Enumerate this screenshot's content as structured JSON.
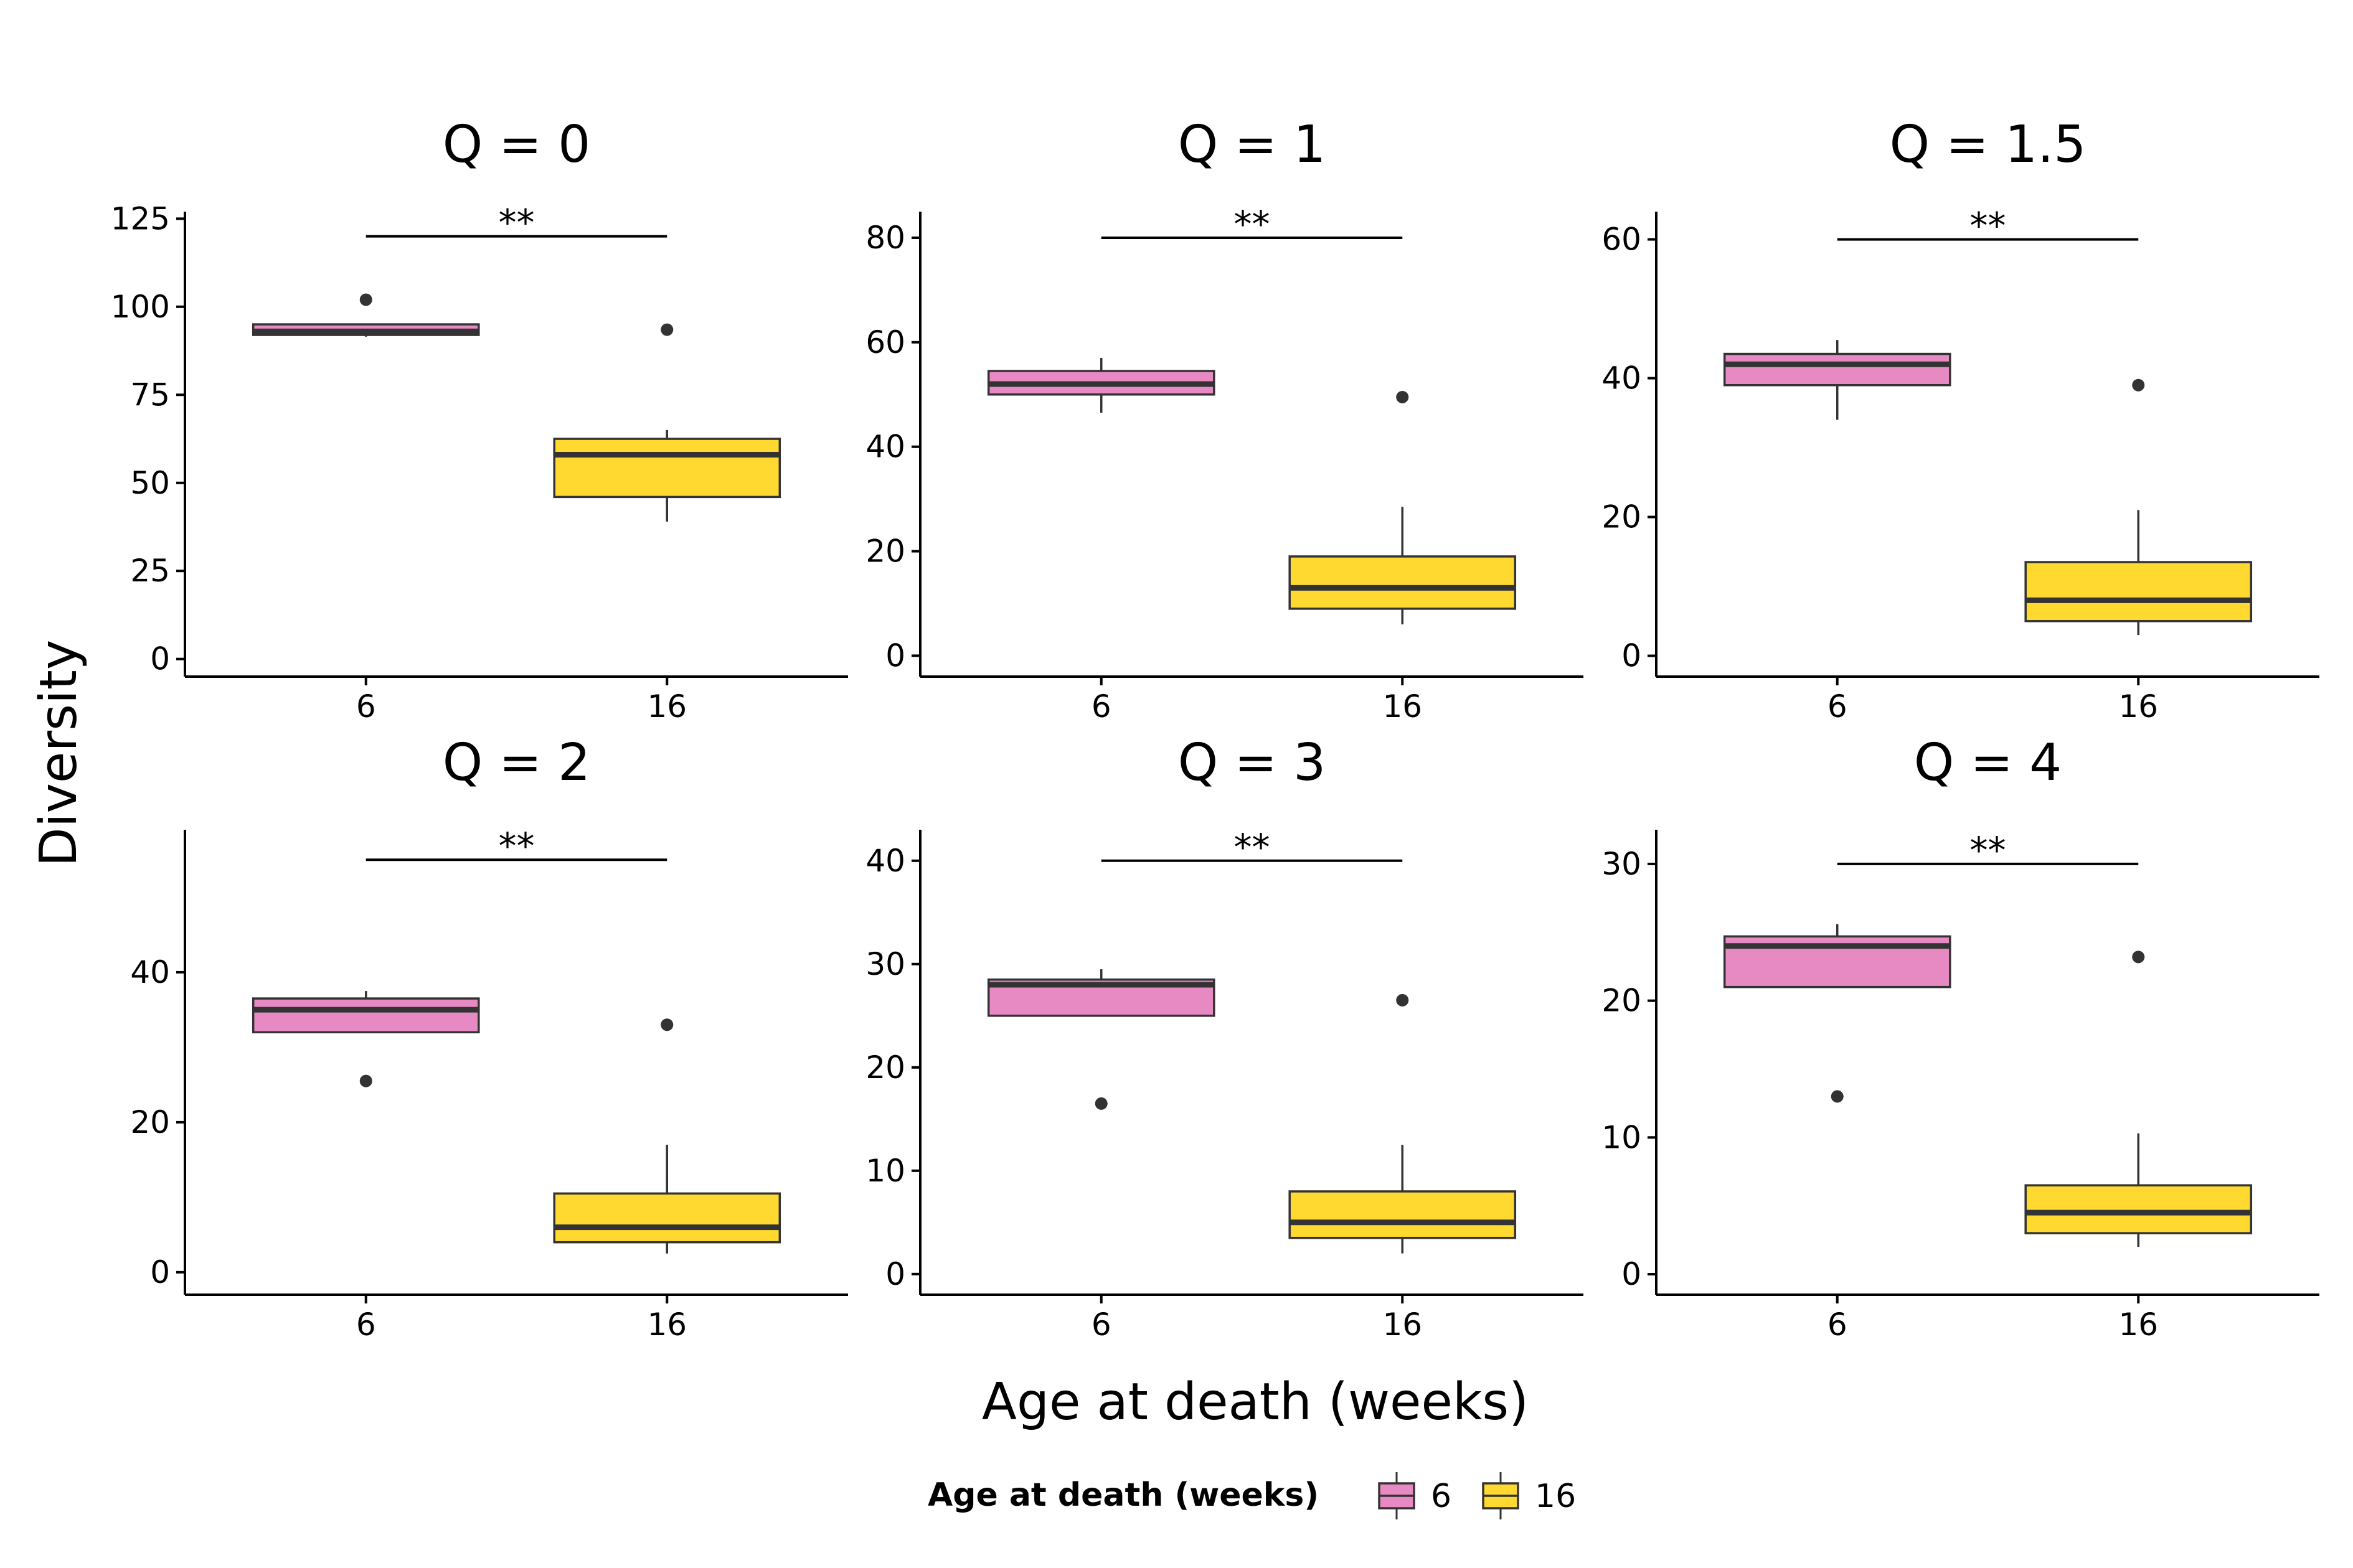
{
  "chart_data": {
    "type": "box",
    "ylabel": "Diversity",
    "xlabel": "Age at death (weeks)",
    "categories": [
      "6",
      "16"
    ],
    "colors": {
      "6": "#e78ac3",
      "16": "#ffd92f"
    },
    "legend": {
      "title": "Age at death (weeks)",
      "position": "bottom",
      "items": [
        {
          "label": "6",
          "color": "#e78ac3"
        },
        {
          "label": "16",
          "color": "#ffd92f"
        }
      ]
    },
    "panels": [
      {
        "title": "Q = 0",
        "ylim": [
          -5,
          127
        ],
        "yticks": [
          0,
          25,
          50,
          75,
          100,
          125
        ],
        "significance": {
          "label": "**",
          "y": 120
        },
        "boxes": [
          {
            "group": "6",
            "whisker_low": 91.5,
            "q1": 92,
            "median": 93,
            "q3": 95,
            "whisker_high": 95,
            "outliers": [
              102
            ]
          },
          {
            "group": "16",
            "whisker_low": 39,
            "q1": 46,
            "median": 58,
            "q3": 62.5,
            "whisker_high": 65,
            "outliers": [
              93.5
            ]
          }
        ]
      },
      {
        "title": "Q = 1",
        "ylim": [
          -4,
          85
        ],
        "yticks": [
          0,
          20,
          40,
          60,
          80
        ],
        "significance": {
          "label": "**",
          "y": 80
        },
        "boxes": [
          {
            "group": "6",
            "whisker_low": 46.5,
            "q1": 50,
            "median": 52,
            "q3": 54.5,
            "whisker_high": 57,
            "outliers": []
          },
          {
            "group": "16",
            "whisker_low": 6,
            "q1": 9,
            "median": 13,
            "q3": 19,
            "whisker_high": 28.5,
            "outliers": [
              49.5
            ]
          }
        ]
      },
      {
        "title": "Q = 1.5",
        "ylim": [
          -3,
          64
        ],
        "yticks": [
          0,
          20,
          40,
          60
        ],
        "significance": {
          "label": "**",
          "y": 60
        },
        "boxes": [
          {
            "group": "6",
            "whisker_low": 34,
            "q1": 39,
            "median": 42,
            "q3": 43.5,
            "whisker_high": 45.5,
            "outliers": []
          },
          {
            "group": "16",
            "whisker_low": 3,
            "q1": 5,
            "median": 8,
            "q3": 13.5,
            "whisker_high": 21,
            "outliers": [
              39
            ]
          }
        ]
      },
      {
        "title": "Q = 2",
        "ylim": [
          -3,
          59
        ],
        "yticks": [
          0,
          20,
          40
        ],
        "significance": {
          "label": "**",
          "y": 55
        },
        "boxes": [
          {
            "group": "6",
            "whisker_low": 32,
            "q1": 32,
            "median": 35,
            "q3": 36.5,
            "whisker_high": 37.5,
            "outliers": [
              25.5
            ]
          },
          {
            "group": "16",
            "whisker_low": 2.5,
            "q1": 4,
            "median": 6,
            "q3": 10.5,
            "whisker_high": 17,
            "outliers": [
              33
            ]
          }
        ]
      },
      {
        "title": "Q = 3",
        "ylim": [
          -2,
          43
        ],
        "yticks": [
          0,
          10,
          20,
          30,
          40
        ],
        "significance": {
          "label": "**",
          "y": 40
        },
        "boxes": [
          {
            "group": "6",
            "whisker_low": 25,
            "q1": 25,
            "median": 28,
            "q3": 28.5,
            "whisker_high": 29.5,
            "outliers": [
              16.5
            ]
          },
          {
            "group": "16",
            "whisker_low": 2,
            "q1": 3.5,
            "median": 5,
            "q3": 8,
            "whisker_high": 12.5,
            "outliers": [
              26.5
            ]
          }
        ]
      },
      {
        "title": "Q = 4",
        "ylim": [
          -1.5,
          32.5
        ],
        "yticks": [
          0,
          10,
          20,
          30
        ],
        "significance": {
          "label": "**",
          "y": 30
        },
        "boxes": [
          {
            "group": "6",
            "whisker_low": 21,
            "q1": 21,
            "median": 24,
            "q3": 24.7,
            "whisker_high": 25.6,
            "outliers": [
              13
            ]
          },
          {
            "group": "16",
            "whisker_low": 2,
            "q1": 3,
            "median": 4.5,
            "q3": 6.5,
            "whisker_high": 10.3,
            "outliers": [
              23.2
            ]
          }
        ]
      }
    ]
  }
}
